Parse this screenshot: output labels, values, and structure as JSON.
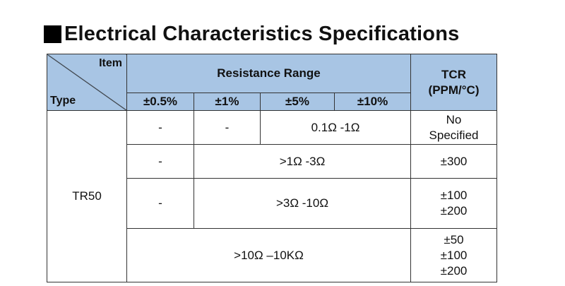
{
  "title": "Electrical Characteristics Specifications",
  "header": {
    "item": "Item",
    "type": "Type",
    "resistance_range": "Resistance Range",
    "tcr_line1": "TCR",
    "tcr_line2": "(PPM/°C)",
    "tolerances": [
      "±0.5%",
      "±1%",
      "±5%",
      "±10%"
    ]
  },
  "type_name": "TR50",
  "rows": [
    {
      "c1": "-",
      "c2": "-",
      "range": "0.1Ω -1Ω",
      "tcr": [
        "No",
        "Specified"
      ]
    },
    {
      "c1": "-",
      "range": ">1Ω -3Ω",
      "tcr": [
        "±300"
      ]
    },
    {
      "c1": "-",
      "range": ">3Ω -10Ω",
      "tcr": [
        "±100",
        "±200"
      ]
    },
    {
      "range": ">10Ω –10KΩ",
      "tcr": [
        "±50",
        "±100",
        "±200"
      ]
    }
  ]
}
